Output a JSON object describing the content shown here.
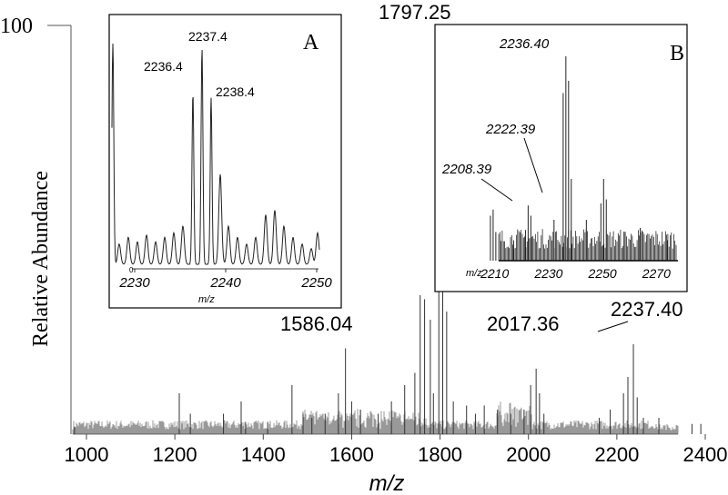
{
  "chart_data": [
    {
      "type": "line",
      "role": "main-spectrum",
      "xlabel": "m/z",
      "ylabel": "Relative Abundance",
      "xlim": [
        950,
        2430
      ],
      "ylim": [
        0,
        100
      ],
      "y_tick_labels": [
        "100"
      ],
      "x_tick_labels": [
        "1000",
        "1200",
        "1400",
        "1600",
        "1800",
        "2000",
        "2200",
        "2400"
      ],
      "x_ticks": [
        1000,
        1200,
        1400,
        1600,
        1800,
        2000,
        2200,
        2400
      ],
      "peaks": [
        {
          "x": 973,
          "y": 1.8
        },
        {
          "x": 1210,
          "y": 10
        },
        {
          "x": 1235,
          "y": 5
        },
        {
          "x": 1310,
          "y": 5
        },
        {
          "x": 1350,
          "y": 8
        },
        {
          "x": 1360,
          "y": 3
        },
        {
          "x": 1410,
          "y": 3
        },
        {
          "x": 1465,
          "y": 12
        },
        {
          "x": 1490,
          "y": 5
        },
        {
          "x": 1510,
          "y": 4
        },
        {
          "x": 1540,
          "y": 5
        },
        {
          "x": 1570,
          "y": 10
        },
        {
          "x": 1586.04,
          "y": 21
        },
        {
          "x": 1600,
          "y": 8
        },
        {
          "x": 1620,
          "y": 6
        },
        {
          "x": 1660,
          "y": 5
        },
        {
          "x": 1690,
          "y": 8
        },
        {
          "x": 1720,
          "y": 12
        },
        {
          "x": 1743,
          "y": 15
        },
        {
          "x": 1755,
          "y": 34
        },
        {
          "x": 1765,
          "y": 33
        },
        {
          "x": 1778,
          "y": 28
        },
        {
          "x": 1785,
          "y": 10
        },
        {
          "x": 1797.25,
          "y": 100
        },
        {
          "x": 1806,
          "y": 42
        },
        {
          "x": 1815,
          "y": 30
        },
        {
          "x": 1830,
          "y": 8
        },
        {
          "x": 1860,
          "y": 7
        },
        {
          "x": 1880,
          "y": 5
        },
        {
          "x": 1900,
          "y": 7
        },
        {
          "x": 1930,
          "y": 6
        },
        {
          "x": 1960,
          "y": 5
        },
        {
          "x": 1990,
          "y": 6
        },
        {
          "x": 2005,
          "y": 12
        },
        {
          "x": 2017.36,
          "y": 16
        },
        {
          "x": 2025,
          "y": 10
        },
        {
          "x": 2035,
          "y": 5
        },
        {
          "x": 2160,
          "y": 4
        },
        {
          "x": 2185,
          "y": 6
        },
        {
          "x": 2215,
          "y": 10
        },
        {
          "x": 2225,
          "y": 14
        },
        {
          "x": 2237.4,
          "y": 22
        },
        {
          "x": 2246,
          "y": 9
        },
        {
          "x": 2260,
          "y": 4
        },
        {
          "x": 2295,
          "y": 4
        },
        {
          "x": 2370,
          "y": 2.5
        },
        {
          "x": 2390,
          "y": 2.5
        }
      ],
      "annotations": [
        {
          "text": "1797.25",
          "x": 1797.25
        },
        {
          "text": "1586.04",
          "x": 1586.04
        },
        {
          "text": "2017.36",
          "x": 2017.36
        },
        {
          "text": "2237.40",
          "x": 2237.4
        }
      ]
    },
    {
      "type": "line",
      "role": "inset-A",
      "panel_label": "A",
      "xlabel": "m/z",
      "xlim": [
        2227.5,
        2250.3
      ],
      "x_ticks": [
        2230,
        2240,
        2250
      ],
      "x_tick_labels": [
        "2230",
        "2240",
        "2250"
      ],
      "y_tick_labels": [
        "0"
      ],
      "ylim": [
        0,
        100
      ],
      "peaks": [
        {
          "x": 2227.6,
          "y": 100
        },
        {
          "x": 2228.3,
          "y": 9
        },
        {
          "x": 2229.3,
          "y": 12
        },
        {
          "x": 2230.3,
          "y": 10
        },
        {
          "x": 2231.3,
          "y": 13
        },
        {
          "x": 2232.3,
          "y": 10
        },
        {
          "x": 2233.3,
          "y": 12
        },
        {
          "x": 2234.3,
          "y": 14
        },
        {
          "x": 2235.3,
          "y": 17
        },
        {
          "x": 2236.4,
          "y": 76
        },
        {
          "x": 2237.4,
          "y": 96
        },
        {
          "x": 2238.4,
          "y": 74
        },
        {
          "x": 2239.4,
          "y": 40
        },
        {
          "x": 2240.3,
          "y": 17
        },
        {
          "x": 2241.3,
          "y": 12
        },
        {
          "x": 2242.3,
          "y": 9
        },
        {
          "x": 2243.3,
          "y": 12
        },
        {
          "x": 2244.4,
          "y": 22
        },
        {
          "x": 2245.4,
          "y": 24
        },
        {
          "x": 2246.4,
          "y": 17
        },
        {
          "x": 2247.4,
          "y": 12
        },
        {
          "x": 2248.4,
          "y": 9
        },
        {
          "x": 2249.4,
          "y": 7
        },
        {
          "x": 2250.1,
          "y": 14
        }
      ],
      "annotations": [
        {
          "text": "2237.4",
          "x": 2237.4
        },
        {
          "text": "2236.4",
          "x": 2236.4
        },
        {
          "text": "2238.4",
          "x": 2238.4
        }
      ]
    },
    {
      "type": "line",
      "role": "inset-B",
      "panel_label": "B",
      "xlabel": "m/z",
      "xlim": [
        2202,
        2278
      ],
      "x_ticks": [
        2210,
        2230,
        2250,
        2270
      ],
      "x_tick_labels": [
        "2210",
        "2230",
        "2250",
        "2270"
      ],
      "ylim": [
        0,
        100
      ],
      "peaks": [
        {
          "x": 2208.39,
          "y": 22
        },
        {
          "x": 2209.4,
          "y": 25
        },
        {
          "x": 2210.4,
          "y": 14
        },
        {
          "x": 2217,
          "y": 10
        },
        {
          "x": 2221.4,
          "y": 15
        },
        {
          "x": 2222.39,
          "y": 27
        },
        {
          "x": 2223.4,
          "y": 22
        },
        {
          "x": 2232,
          "y": 20
        },
        {
          "x": 2235.4,
          "y": 82
        },
        {
          "x": 2236.4,
          "y": 100
        },
        {
          "x": 2237.4,
          "y": 88
        },
        {
          "x": 2238.4,
          "y": 40
        },
        {
          "x": 2244,
          "y": 20
        },
        {
          "x": 2249.4,
          "y": 28
        },
        {
          "x": 2250.4,
          "y": 40
        },
        {
          "x": 2251.4,
          "y": 30
        },
        {
          "x": 2258,
          "y": 14
        },
        {
          "x": 2264,
          "y": 16
        },
        {
          "x": 2274,
          "y": 10
        }
      ],
      "annotations": [
        {
          "text": "2236.40",
          "x": 2236.4
        },
        {
          "text": "2222.39",
          "x": 2222.39
        },
        {
          "text": "2208.39",
          "x": 2208.39
        }
      ]
    }
  ]
}
